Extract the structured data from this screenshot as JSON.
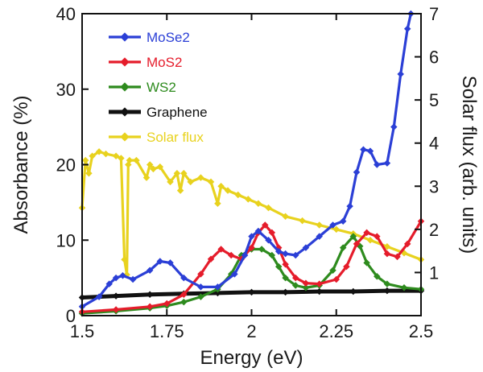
{
  "chart_data": {
    "type": "line",
    "xlabel": "Energy (eV)",
    "ylabel": "Absorbance (%)",
    "y2label": "Solar flux (arb. units)",
    "xlim": [
      1.5,
      2.5
    ],
    "ylim": [
      0,
      40
    ],
    "y2lim": [
      0,
      7
    ],
    "xticks": [
      "1.5",
      "1.75",
      "2",
      "2.25",
      "2.5"
    ],
    "xtick_values": [
      1.5,
      1.75,
      2.0,
      2.25,
      2.5
    ],
    "yticks": [
      "0",
      "10",
      "20",
      "30",
      "40"
    ],
    "ytick_values": [
      0,
      10,
      20,
      30,
      40
    ],
    "y2ticks": [
      "1",
      "2",
      "3",
      "4",
      "5",
      "6",
      "7"
    ],
    "y2tick_values": [
      1,
      2,
      3,
      4,
      5,
      6,
      7
    ],
    "legend_position": "top-left",
    "series": [
      {
        "name": "MoSe2",
        "color": "#2b3fd6",
        "axis": "left",
        "x": [
          1.5,
          1.55,
          1.58,
          1.6,
          1.62,
          1.65,
          1.7,
          1.73,
          1.76,
          1.8,
          1.85,
          1.9,
          1.95,
          1.98,
          2.0,
          2.02,
          2.05,
          2.08,
          2.1,
          2.13,
          2.16,
          2.2,
          2.24,
          2.27,
          2.29,
          2.31,
          2.33,
          2.35,
          2.37,
          2.4,
          2.42,
          2.44,
          2.46,
          2.47
        ],
        "y": [
          1.2,
          2.5,
          4.2,
          5.0,
          5.3,
          4.8,
          6.0,
          7.2,
          7.0,
          5.0,
          3.8,
          3.8,
          5.5,
          8.0,
          10.5,
          11.2,
          10.0,
          8.5,
          8.2,
          8.0,
          9.0,
          10.5,
          12.0,
          12.5,
          14.5,
          19.0,
          22.0,
          21.8,
          20.0,
          20.2,
          25.0,
          32.0,
          38.0,
          40.0
        ]
      },
      {
        "name": "MoS2",
        "color": "#e51c2b",
        "axis": "left",
        "x": [
          1.5,
          1.6,
          1.7,
          1.75,
          1.8,
          1.85,
          1.88,
          1.91,
          1.94,
          1.97,
          2.0,
          2.02,
          2.04,
          2.06,
          2.08,
          2.1,
          2.13,
          2.16,
          2.2,
          2.25,
          2.28,
          2.31,
          2.34,
          2.37,
          2.4,
          2.43,
          2.46,
          2.5
        ],
        "y": [
          0.5,
          0.8,
          1.2,
          1.6,
          2.8,
          5.5,
          7.5,
          8.8,
          8.0,
          7.5,
          9.0,
          11.0,
          12.0,
          11.0,
          9.0,
          6.8,
          5.0,
          4.3,
          4.2,
          4.8,
          6.5,
          9.5,
          11.0,
          10.5,
          8.2,
          7.8,
          9.5,
          12.5
        ]
      },
      {
        "name": "WS2",
        "color": "#2e8b1e",
        "axis": "left",
        "x": [
          1.5,
          1.6,
          1.7,
          1.75,
          1.8,
          1.85,
          1.9,
          1.94,
          1.97,
          2.0,
          2.03,
          2.06,
          2.08,
          2.1,
          2.13,
          2.16,
          2.2,
          2.24,
          2.27,
          2.3,
          2.32,
          2.34,
          2.37,
          2.4,
          2.45,
          2.5
        ],
        "y": [
          0.3,
          0.6,
          1.0,
          1.3,
          1.8,
          2.5,
          3.5,
          5.5,
          8.0,
          8.8,
          8.8,
          8.0,
          6.5,
          5.0,
          4.0,
          3.7,
          4.0,
          6.0,
          9.0,
          10.5,
          9.2,
          7.0,
          5.2,
          4.2,
          3.7,
          3.5
        ]
      },
      {
        "name": "Graphene",
        "color": "#111111",
        "axis": "left",
        "x": [
          1.5,
          1.6,
          1.7,
          1.8,
          1.9,
          2.0,
          2.1,
          2.2,
          2.3,
          2.4,
          2.5
        ],
        "y": [
          2.4,
          2.6,
          2.8,
          2.9,
          3.0,
          3.1,
          3.1,
          3.2,
          3.2,
          3.3,
          3.3
        ]
      },
      {
        "name": "Solar flux",
        "color": "#e8d21e",
        "axis": "right",
        "x": [
          1.5,
          1.51,
          1.52,
          1.53,
          1.55,
          1.57,
          1.6,
          1.615,
          1.625,
          1.632,
          1.636,
          1.64,
          1.66,
          1.69,
          1.7,
          1.71,
          1.73,
          1.76,
          1.78,
          1.79,
          1.8,
          1.82,
          1.85,
          1.88,
          1.9,
          1.91,
          1.93,
          1.96,
          1.99,
          2.02,
          2.05,
          2.1,
          2.15,
          2.2,
          2.25,
          2.3,
          2.35,
          2.4,
          2.45,
          2.5
        ],
        "y": [
          2.5,
          3.6,
          3.3,
          3.7,
          3.8,
          3.75,
          3.7,
          3.65,
          1.3,
          0.95,
          3.5,
          3.6,
          3.6,
          3.2,
          3.5,
          3.4,
          3.45,
          3.1,
          3.3,
          2.9,
          3.3,
          3.1,
          3.2,
          3.1,
          2.6,
          3.0,
          2.9,
          2.8,
          2.7,
          2.6,
          2.5,
          2.3,
          2.2,
          2.1,
          2.0,
          1.9,
          1.75,
          1.6,
          1.45,
          1.3
        ]
      }
    ]
  }
}
